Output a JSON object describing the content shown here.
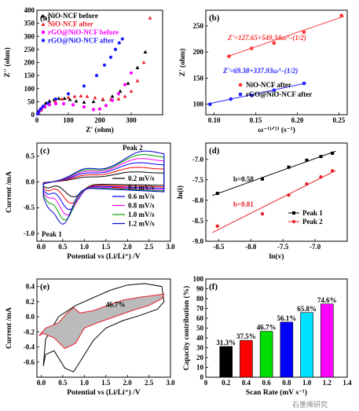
{
  "colors": {
    "black": "#000000",
    "red": "#e8202a",
    "magenta": "#ff00ff",
    "blue": "#1a1aff",
    "fit_red": "#ff3333",
    "fit_blue": "#2222ff",
    "cv_colors": [
      "#000000",
      "#ff0000",
      "#0000ff",
      "#ff00ff",
      "#00a000",
      "#0000cc"
    ],
    "bar_colors": [
      "#000000",
      "#ff0000",
      "#00e000",
      "#0000ff",
      "#00e0ff",
      "#ff00ff"
    ],
    "shade": "#bbbbbb"
  },
  "watermark": "石墨烯研究",
  "chart_data": [
    {
      "id": "a",
      "type": "scatter",
      "label": "(a)",
      "xlabel": "Z' (ohm)",
      "ylabel": "Z'' (ohm)",
      "xlim": [
        0,
        400
      ],
      "ylim": [
        0,
        400
      ],
      "xticks": [
        0,
        100,
        200,
        300
      ],
      "yticks": [
        0,
        50,
        100,
        150,
        200,
        250,
        300,
        350,
        400
      ],
      "legend": [
        "NiO-NCF before",
        "NiO-NCF after",
        "rGO@NiO-NCF before",
        "rGO@NiO-NCF after"
      ],
      "series": [
        {
          "name": "NiO-NCF before",
          "marker": "triangle",
          "x": [
            4,
            10,
            18,
            28,
            40,
            55,
            70,
            88,
            105,
            125,
            150,
            180,
            210,
            240,
            265,
            290,
            320,
            345
          ],
          "y": [
            6,
            20,
            32,
            44,
            52,
            58,
            62,
            62,
            58,
            52,
            48,
            50,
            58,
            70,
            90,
            120,
            180,
            240
          ]
        },
        {
          "name": "NiO-NCF after",
          "marker": "triangle",
          "x": [
            6,
            14,
            25,
            40,
            58,
            80,
            100,
            120,
            140,
            160,
            185,
            210,
            235,
            260,
            280,
            300,
            320,
            340,
            360
          ],
          "y": [
            6,
            18,
            30,
            42,
            52,
            60,
            66,
            70,
            72,
            70,
            65,
            60,
            58,
            60,
            70,
            90,
            130,
            200,
            370
          ]
        },
        {
          "name": "rGO@NiO-NCF before",
          "marker": "circle",
          "x": [
            3,
            8,
            15,
            25,
            40,
            60,
            85,
            115,
            150,
            180,
            200,
            220,
            240,
            260,
            280,
            300
          ],
          "y": [
            5,
            15,
            24,
            32,
            38,
            42,
            42,
            38,
            30,
            20,
            22,
            35,
            55,
            80,
            115,
            160
          ]
        },
        {
          "name": "rGO@NiO-NCF after",
          "marker": "circle",
          "x": [
            2,
            6,
            12,
            20,
            35,
            60,
            100,
            150,
            190,
            215,
            235,
            250,
            262,
            272
          ],
          "y": [
            3,
            12,
            22,
            32,
            44,
            60,
            80,
            110,
            150,
            190,
            220,
            250,
            275,
            290
          ]
        }
      ]
    },
    {
      "id": "b",
      "type": "scatter",
      "label": "(b)",
      "xlabel": "ω^-(1/2) (s^-1)",
      "ylabel": "Z' (ohm)",
      "xlim": [
        0.09,
        0.26
      ],
      "ylim": [
        80,
        280
      ],
      "xticks": [
        0.1,
        0.15,
        0.2,
        0.25
      ],
      "yticks": [
        100,
        150,
        200,
        250
      ],
      "legend": [
        "NiO-NCF after",
        "rGO@NiO-NCF after"
      ],
      "annotations": [
        "Z'=127.65+549.34ω^-(1/2)",
        "Z'=69.38+337.93ω^-(1/2)"
      ],
      "series": [
        {
          "name": "NiO-NCF after",
          "x": [
            0.118,
            0.145,
            0.172,
            0.208,
            0.253
          ],
          "y": [
            192,
            207,
            217,
            238,
            270
          ]
        },
        {
          "name": "rGO@NiO-NCF after",
          "x": [
            0.095,
            0.12,
            0.145,
            0.172,
            0.208
          ],
          "y": [
            100,
            110,
            117,
            127,
            140
          ]
        }
      ]
    },
    {
      "id": "c",
      "type": "line",
      "label": "(c)",
      "xlabel": "Potential vs (Li/Li+) /V",
      "ylabel": "Current /mA",
      "xlim": [
        -0.1,
        3.0
      ],
      "ylim": [
        -1.15,
        0.75
      ],
      "xticks": [
        0.0,
        0.5,
        1.0,
        1.5,
        2.0,
        2.5,
        3.0
      ],
      "yticks": [
        -1.0,
        -0.5,
        0.0,
        0.5
      ],
      "legend": [
        "0.2 mV/s",
        "0.4 mV/s",
        "0.6 mV/s",
        "0.8 mV/s",
        "1.0 mV/s",
        "1.2 mV/s"
      ],
      "annotations": [
        "Peak 2",
        "Peak 1"
      ],
      "scale": [
        0.35,
        0.5,
        0.65,
        0.78,
        0.9,
        1.0
      ]
    },
    {
      "id": "d",
      "type": "scatter",
      "label": "(d)",
      "xlabel": "ln(v)",
      "ylabel": "ln(i)",
      "xlim": [
        -8.7,
        -6.5
      ],
      "ylim": [
        -9.0,
        -6.6
      ],
      "xticks": [
        -8.5,
        -8.0,
        -7.5,
        -7.0
      ],
      "yticks": [
        -9.0,
        -8.5,
        -8.0,
        -7.5,
        -7.0
      ],
      "legend": [
        "Peak 1",
        "Peak 2"
      ],
      "annotations": [
        "b=0.58",
        "b=0.81"
      ],
      "series": [
        {
          "name": "Peak 1",
          "x": [
            -8.52,
            -7.82,
            -7.41,
            -7.13,
            -6.91,
            -6.73
          ],
          "y": [
            -7.83,
            -7.48,
            -7.19,
            -7.02,
            -6.93,
            -6.85
          ]
        },
        {
          "name": "Peak 2",
          "x": [
            -8.52,
            -7.82,
            -7.41,
            -7.13,
            -6.91,
            -6.73
          ],
          "y": [
            -8.63,
            -8.33,
            -7.87,
            -7.6,
            -7.43,
            -7.28
          ]
        }
      ]
    },
    {
      "id": "e",
      "type": "line",
      "label": "(e)",
      "xlabel": "Potential vs (Li/Li+) /V",
      "ylabel": "Current /mA",
      "xlim": [
        -0.1,
        3.0
      ],
      "ylim": [
        -0.8,
        0.5
      ],
      "xticks": [
        0.0,
        0.5,
        1.0,
        1.5,
        2.0,
        2.5,
        3.0
      ],
      "yticks": [
        -0.6,
        -0.4,
        -0.2,
        0.0,
        0.2,
        0.4
      ],
      "annotations": [
        "46.7%"
      ]
    },
    {
      "id": "f",
      "type": "bar",
      "label": "(f)",
      "xlabel": "Scan Rate (mV s^-1)",
      "ylabel": "Capacity contribution (%)",
      "xlim": [
        0,
        1.4
      ],
      "ylim": [
        0,
        100
      ],
      "xticks": [
        0,
        0.2,
        0.4,
        0.6,
        0.8,
        1.0,
        1.2,
        1.4
      ],
      "yticks": [
        0,
        10,
        20,
        30,
        40,
        50,
        60,
        70,
        80,
        90,
        100
      ],
      "categories": [
        0.2,
        0.4,
        0.6,
        0.8,
        1.0,
        1.2
      ],
      "values": [
        31.3,
        37.5,
        46.7,
        56.1,
        65.8,
        74.6
      ],
      "value_labels": [
        "31.3%",
        "37.5%",
        "46.7%",
        "56.1%",
        "65.8%",
        "74.6%"
      ]
    }
  ]
}
